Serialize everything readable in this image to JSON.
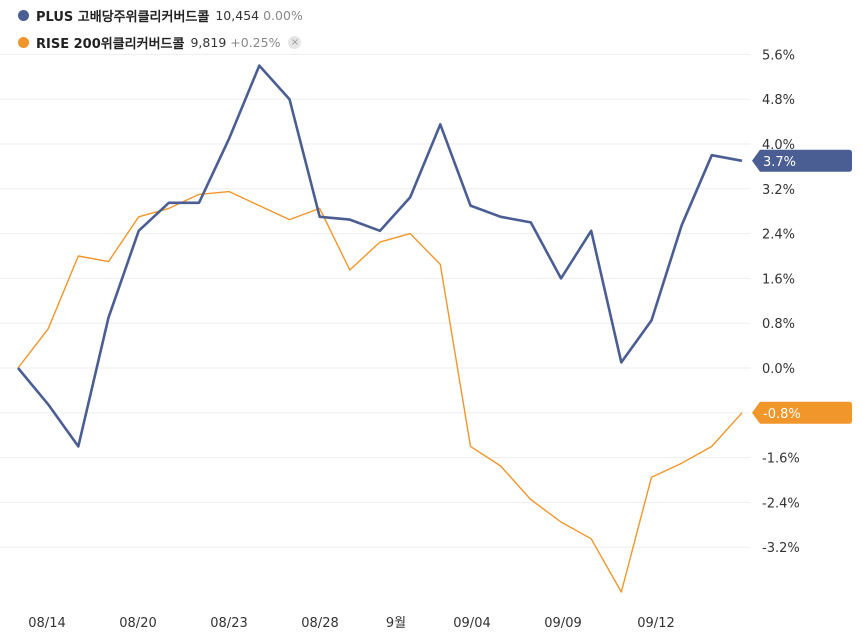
{
  "legend": [
    {
      "name": "PLUS 고배당주위클리커버드콜",
      "price": "10,454",
      "change": "0.00%",
      "color": "#4a5e94",
      "closable": false
    },
    {
      "name": "RISE 200위클리커버드콜",
      "price": "9,819",
      "change": "+0.25%",
      "color": "#f0962a",
      "closable": true,
      "close_icon": "×"
    }
  ],
  "chart_data": {
    "type": "line",
    "x_tick_labels": [
      "08/14",
      "08/20",
      "08/23",
      "08/28",
      "9월",
      "09/04",
      "09/09",
      "09/12"
    ],
    "y_ticks": [
      5.6,
      4.8,
      4.0,
      3.2,
      2.4,
      1.6,
      0.8,
      0.0,
      -0.8,
      -1.6,
      -2.4,
      -3.2
    ],
    "y_tick_labels": [
      "5.6%",
      "4.8%",
      "4.0%",
      "3.2%",
      "2.4%",
      "1.6%",
      "0.8%",
      "0.0%",
      "",
      "-1.6%",
      "-2.4%",
      "-3.2%"
    ],
    "ylim": [
      -4.2,
      5.9
    ],
    "grid": true,
    "series": [
      {
        "name": "PLUS 고배당주위클리커버드콜",
        "color": "#4a5e94",
        "values": [
          0.0,
          -0.65,
          -1.4,
          0.9,
          2.45,
          2.95,
          2.95,
          4.1,
          5.4,
          4.8,
          2.7,
          2.65,
          2.45,
          3.05,
          4.35,
          2.9,
          2.7,
          2.6,
          1.6,
          2.45,
          0.1,
          0.85,
          2.55,
          3.8,
          3.7
        ],
        "last_label": "3.7%"
      },
      {
        "name": "RISE 200위클리커버드콜",
        "color": "#f0962a",
        "values": [
          0.0,
          0.7,
          2.0,
          1.9,
          2.7,
          2.85,
          3.1,
          3.15,
          2.9,
          2.65,
          2.85,
          1.75,
          2.25,
          2.4,
          1.85,
          -1.4,
          -1.75,
          -2.35,
          -2.75,
          -3.05,
          -4.0,
          -1.95,
          -1.7,
          -1.4,
          -0.8
        ],
        "last_label": "-0.8%"
      }
    ]
  }
}
